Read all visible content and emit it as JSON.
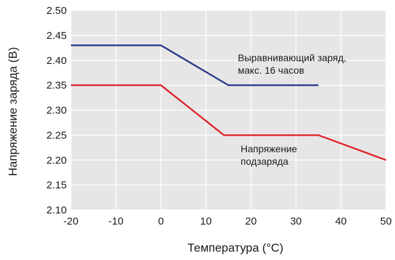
{
  "chart_data": {
    "type": "line",
    "xlabel": "Температура (°C)",
    "ylabel": "Напряжение заряда (В)",
    "xlim": [
      -20,
      50
    ],
    "ylim": [
      2.1,
      2.5
    ],
    "x_ticks": [
      "-20",
      "-10",
      "0",
      "10",
      "20",
      "30",
      "40",
      "50"
    ],
    "y_ticks": [
      "2.10",
      "2.15",
      "2.20",
      "2.25",
      "2.30",
      "2.35",
      "2.40",
      "2.45",
      "2.50"
    ],
    "grid": true,
    "background": "#e6e6e6",
    "series": [
      {
        "name": "Выравнивающий заряд, макс. 16 часов",
        "color": "#2b3a8c",
        "x": [
          -20,
          0,
          15,
          35
        ],
        "y": [
          2.43,
          2.43,
          2.35,
          2.35
        ]
      },
      {
        "name": "Напряжение подзаряда",
        "color": "#e0222a",
        "x": [
          -20,
          0,
          14,
          35,
          50
        ],
        "y": [
          2.35,
          2.35,
          2.25,
          2.25,
          2.2
        ]
      }
    ],
    "annotations": [
      {
        "lines": [
          "Выравнивающий заряд,",
          "макс. 16 часов"
        ],
        "series": 0
      },
      {
        "lines": [
          "Напряжение",
          "подзаряда"
        ],
        "series": 1
      }
    ]
  }
}
